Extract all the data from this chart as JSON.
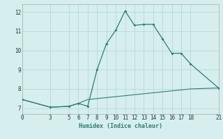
{
  "title": "",
  "xlabel": "Humidex (Indice chaleur)",
  "ylabel": "",
  "background_color": "#d6eeee",
  "grid_color": "#b8d8d8",
  "line_color": "#2e7d6e",
  "xlim": [
    0,
    21
  ],
  "ylim": [
    6.7,
    12.4
  ],
  "yticks": [
    7,
    8,
    9,
    10,
    11,
    12
  ],
  "xticks": [
    0,
    3,
    5,
    6,
    7,
    8,
    9,
    10,
    11,
    12,
    13,
    14,
    15,
    16,
    17,
    18,
    21
  ],
  "series1_x": [
    0,
    3,
    5,
    6,
    7,
    8,
    9,
    10,
    11,
    12,
    13,
    14,
    15,
    16,
    17,
    18,
    21
  ],
  "series1_y": [
    7.45,
    7.05,
    7.1,
    7.25,
    7.1,
    9.0,
    10.35,
    11.05,
    12.05,
    11.3,
    11.35,
    11.35,
    10.6,
    9.85,
    9.85,
    9.3,
    8.05
  ],
  "series2_x": [
    0,
    3,
    5,
    6,
    7,
    8,
    9,
    10,
    11,
    12,
    13,
    14,
    15,
    16,
    17,
    18,
    21
  ],
  "series2_y": [
    7.45,
    7.05,
    7.1,
    7.25,
    7.45,
    7.5,
    7.55,
    7.6,
    7.65,
    7.7,
    7.75,
    7.8,
    7.85,
    7.9,
    7.95,
    8.0,
    8.05
  ],
  "xlabel_fontsize": 6,
  "tick_fontsize": 5.5
}
